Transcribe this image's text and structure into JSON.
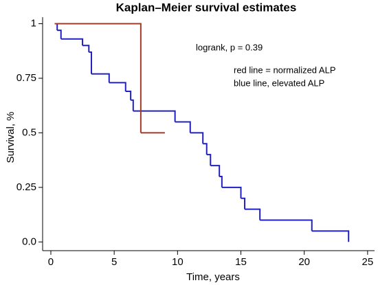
{
  "chart_data": {
    "type": "step",
    "title": "Kaplan–Meier survival estimates",
    "xlabel": "Time, years",
    "ylabel": "Survival, %",
    "annotations": [
      "logrank, p = 0.39",
      "red line = normalized ALP",
      "blue line, elevated ALP"
    ],
    "series": [
      {
        "color": "#2020c0",
        "x": [
          0.3,
          0.5,
          0.8,
          2.5,
          3.0,
          3.2,
          4.6,
          5.9,
          6.3,
          6.5,
          9.8,
          11.0,
          12.0,
          12.3,
          12.6,
          13.3,
          13.5,
          15.0,
          15.3,
          16.5,
          20.6,
          23.5
        ],
        "values": [
          1,
          0.97,
          0.93,
          0.9,
          0.87,
          0.77,
          0.73,
          0.69,
          0.65,
          0.6,
          0.55,
          0.5,
          0.45,
          0.4,
          0.35,
          0.3,
          0.25,
          0.2,
          0.15,
          0.1,
          0.05,
          0
        ]
      },
      {
        "color": "#a03a28",
        "x": [
          0.3,
          7.1,
          9.0
        ],
        "values": [
          1,
          0.5,
          0.5
        ]
      }
    ],
    "xlim": [
      -0.65,
      25.55
    ],
    "ylim": [
      -0.04,
      1.03
    ],
    "xticks": [
      0,
      5,
      10,
      15,
      20,
      25
    ],
    "yticks": [
      1,
      0.75,
      0.5,
      0.25,
      {
        "value": 0,
        "label": "0.0"
      }
    ]
  }
}
